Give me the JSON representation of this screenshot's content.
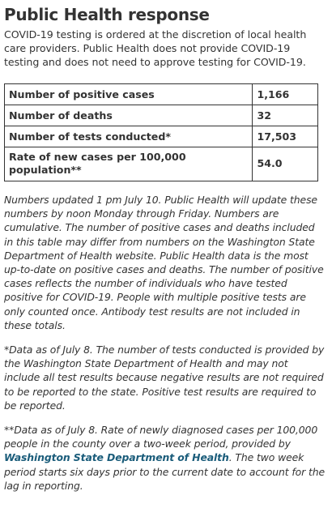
{
  "title": "Public Health response",
  "intro": "COVID-19 testing is ordered at the discretion of local health care providers. Public Health does not provide COVID-19 testing and does not need to approve testing for COVID-19.",
  "stats": [
    {
      "label": "Number of positive cases",
      "value": "1,166"
    },
    {
      "label": "Number of deaths",
      "value": "32"
    },
    {
      "label": "Number of tests conducted*",
      "value": "17,503"
    },
    {
      "label": "Rate of new cases per 100,000 population**",
      "value": "54.0"
    }
  ],
  "notes": {
    "note1": "Numbers updated 1 pm July 10. Public Health will update these numbers by noon Monday through Friday. Numbers are cumulative. The number of positive cases and deaths included in this table may differ from numbers on the Washington State Department of Health website. Public Health data is the most up-to-date on positive cases and deaths. The number of positive cases reflects the number of individuals who have tested positive for COVID-19. People with multiple positive tests are only counted once. Antibody test results are not included in these totals.",
    "note2": "*Data as of July 8. The number of tests conducted is provided by the Washington State Department of Health and may not include all test results because negative results are not required to be reported to the state. Positive test results are required to be reported.",
    "note3_before": "**Data as of July 8. Rate of newly diagnosed cases per 100,000 people in the county over a two-week period, provided by ",
    "note3_link": "Washington State Department of Health",
    "note3_after": ". The two week period starts six days prior to the current date to account for the lag in reporting."
  },
  "colors": {
    "text": "#333333",
    "link": "#1a5c7a"
  }
}
